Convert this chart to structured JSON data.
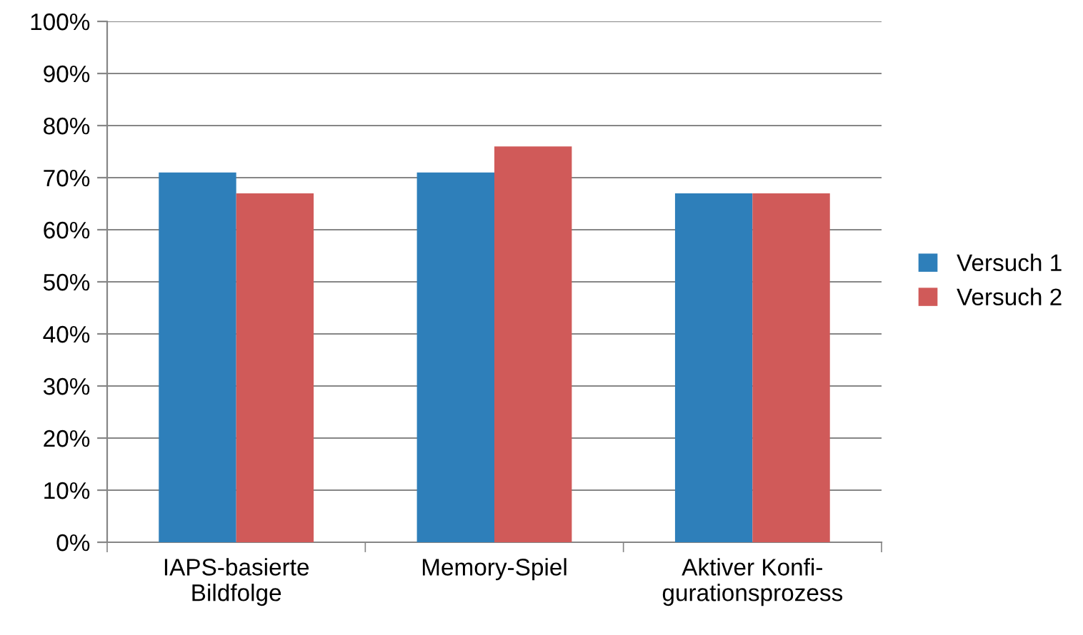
{
  "chart_data": {
    "type": "bar",
    "categories": [
      "IAPS-basierte\nBildfolge",
      "Memory-Spiel",
      "Aktiver Konfi-\ngurationsprozess"
    ],
    "series": [
      {
        "name": "Versuch 1",
        "color": "#2e7fba",
        "values": [
          71,
          71,
          67
        ]
      },
      {
        "name": "Versuch 2",
        "color": "#d05a59",
        "values": [
          67,
          76,
          67
        ]
      }
    ],
    "ylim": [
      0,
      100
    ],
    "yticks": [
      {
        "value": 0,
        "label": "0%"
      },
      {
        "value": 10,
        "label": "10%"
      },
      {
        "value": 20,
        "label": "20%"
      },
      {
        "value": 30,
        "label": "30%"
      },
      {
        "value": 40,
        "label": "40%"
      },
      {
        "value": 50,
        "label": "50%"
      },
      {
        "value": 60,
        "label": "60%"
      },
      {
        "value": 70,
        "label": "70%"
      },
      {
        "value": 80,
        "label": "80%"
      },
      {
        "value": 90,
        "label": "90%"
      },
      {
        "value": 100,
        "label": "100%"
      }
    ],
    "grid": "y",
    "legend": "right"
  }
}
